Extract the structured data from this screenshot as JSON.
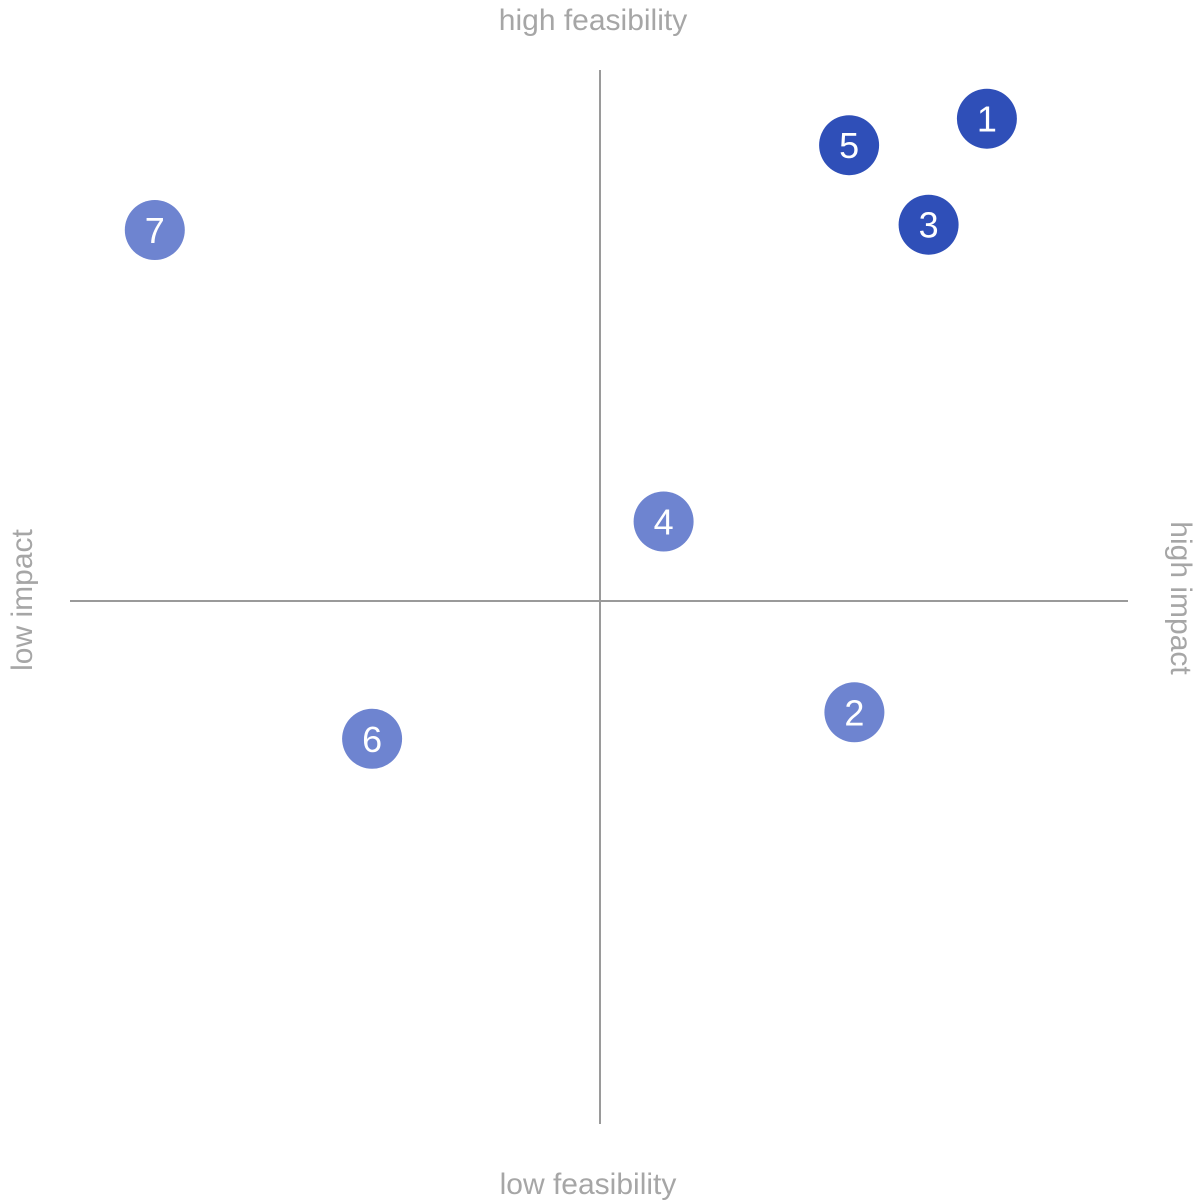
{
  "chart_data": {
    "type": "scatter",
    "title": "",
    "x_axis": {
      "low_label": "low impact",
      "high_label": "high impact",
      "range": [
        -1,
        1
      ]
    },
    "y_axis": {
      "low_label": "low feasibility",
      "high_label": "high feasibility",
      "range": [
        -1,
        1
      ]
    },
    "grid": false,
    "points": [
      {
        "label": "1",
        "x": 0.73,
        "y": 0.91,
        "emphasis": "high"
      },
      {
        "label": "2",
        "x": 0.48,
        "y": -0.21,
        "emphasis": "normal"
      },
      {
        "label": "3",
        "x": 0.62,
        "y": 0.71,
        "emphasis": "high"
      },
      {
        "label": "4",
        "x": 0.12,
        "y": 0.15,
        "emphasis": "normal"
      },
      {
        "label": "5",
        "x": 0.47,
        "y": 0.86,
        "emphasis": "high"
      },
      {
        "label": "6",
        "x": -0.43,
        "y": -0.26,
        "emphasis": "normal"
      },
      {
        "label": "7",
        "x": -0.84,
        "y": 0.7,
        "emphasis": "normal"
      }
    ]
  },
  "colors": {
    "axis_line": "#9a9a9a",
    "axis_label": "#a6a6a6",
    "point_high": "#2f4fb8",
    "point_normal": "#6e84d0",
    "point_text": "#ffffff"
  }
}
